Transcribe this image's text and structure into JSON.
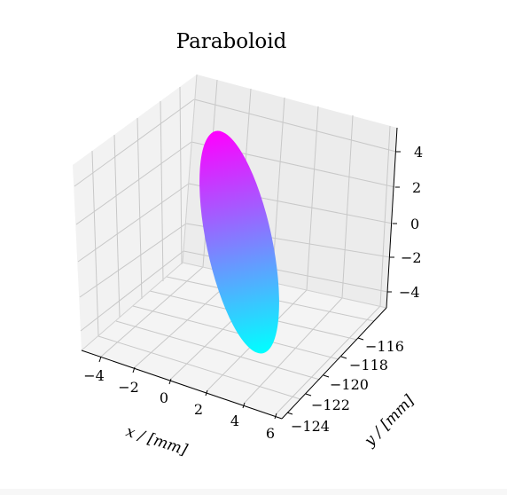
{
  "chart_data": {
    "type": "3d-surface",
    "title": "Paraboloid",
    "xlabel": "x / [mm]",
    "ylabel": "y / [mm]",
    "zlabel": "",
    "x_ticks": [
      "−4",
      "−2",
      "0",
      "2",
      "4",
      "6"
    ],
    "y_ticks": [
      "−116",
      "−118",
      "−120",
      "−122",
      "−124"
    ],
    "z_ticks": [
      "4",
      "2",
      "0",
      "−2",
      "−4"
    ],
    "xlim": [
      -5,
      6
    ],
    "ylim": [
      -125,
      -115
    ],
    "zlim": [
      -5,
      5
    ],
    "colormap": "cool",
    "colormap_colors": [
      "#00ffff",
      "#ff00ff"
    ],
    "grid": true
  }
}
